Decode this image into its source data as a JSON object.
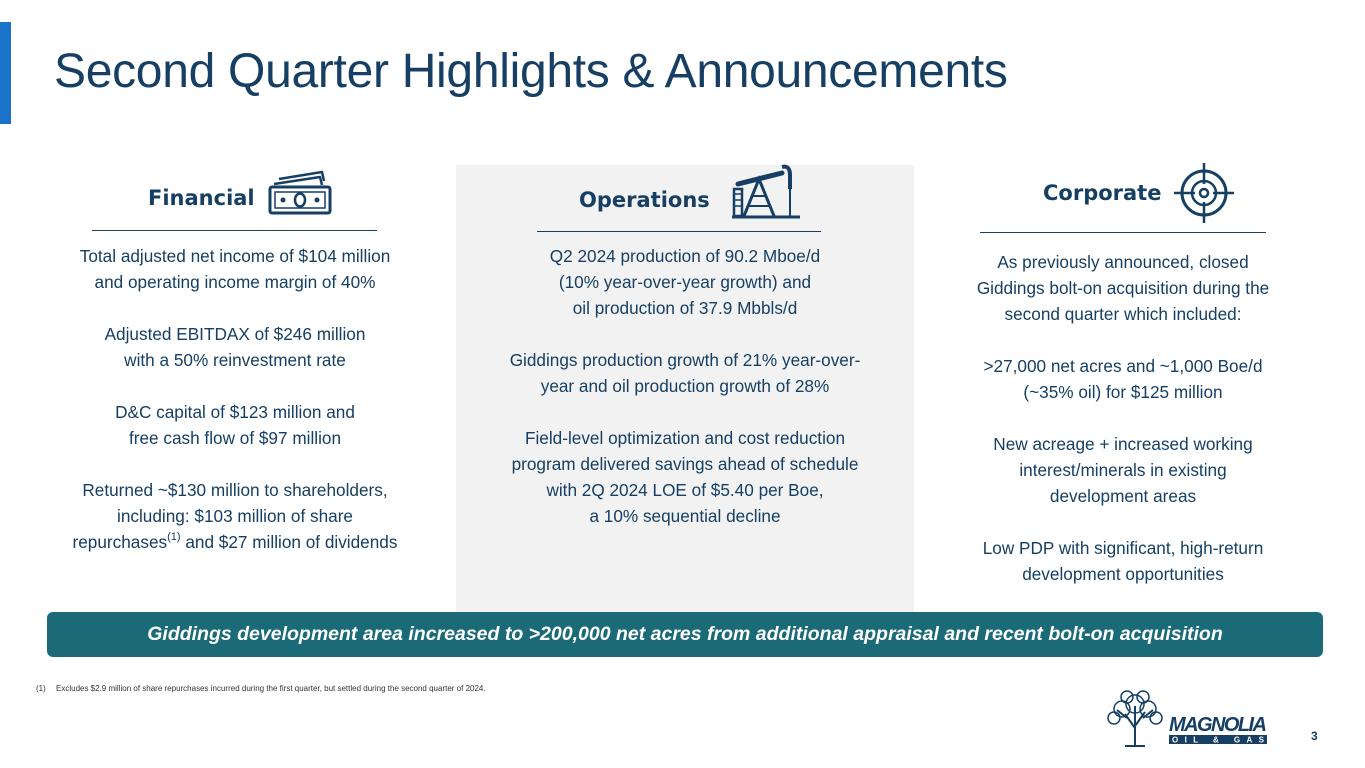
{
  "slide": {
    "title": "Second Quarter Highlights & Announcements",
    "page_number": "3"
  },
  "financial": {
    "heading": "Financial",
    "icon": "money-icon",
    "paragraphs": [
      [
        "Total adjusted net income of $104 million",
        "and operating income margin of 40%"
      ],
      [
        "Adjusted EBITDAX of $246 million",
        "with a 50% reinvestment rate"
      ],
      [
        "D&C capital of $123 million and",
        "free cash flow of $97 million"
      ]
    ],
    "returned": {
      "line1": "Returned ~$130 million to shareholders,",
      "line2": "including: $103 million of share",
      "line3_pre": "repurchases",
      "line3_sup": "(1)",
      "line3_post": " and $27 million of dividends"
    }
  },
  "operations": {
    "heading": "Operations",
    "icon": "pumpjack-icon",
    "paragraphs": [
      [
        "Q2 2024 production of 90.2 Mboe/d",
        "(10% year-over-year growth) and",
        "oil production of 37.9 Mbbls/d"
      ],
      [
        "Giddings production growth of 21% year-over-",
        "year and oil production growth of 28%"
      ],
      [
        "Field-level optimization and cost reduction",
        "program delivered savings ahead of schedule",
        "with 2Q 2024 LOE of $5.40 per Boe,",
        "a 10% sequential decline"
      ]
    ]
  },
  "corporate": {
    "heading": "Corporate",
    "icon": "target-icon",
    "paragraphs": [
      [
        "As previously announced, closed",
        "Giddings bolt-on acquisition during the",
        "second quarter which included:"
      ],
      [
        ">27,000 net acres and ~1,000 Boe/d",
        "(~35% oil) for $125 million"
      ],
      [
        "New acreage + increased working",
        "interest/minerals in existing",
        "development areas"
      ],
      [
        "Low PDP with significant, high-return",
        "development opportunities"
      ]
    ]
  },
  "banner": {
    "text": "Giddings development area increased to >200,000 net acres from additional appraisal and recent bolt-on acquisition"
  },
  "footnote": {
    "marker": "(1)",
    "text": "Excludes $2.9 million of share repurchases incurred during the first quarter, but settled during the second quarter of 2024."
  },
  "logo": {
    "name": "MAGNOLIA",
    "subtitle": "OIL & GAS"
  },
  "colors": {
    "title": "#163f63",
    "accent": "#1a72c9",
    "banner": "#1b6a78",
    "middle_column_bg": "#f2f2f2"
  }
}
